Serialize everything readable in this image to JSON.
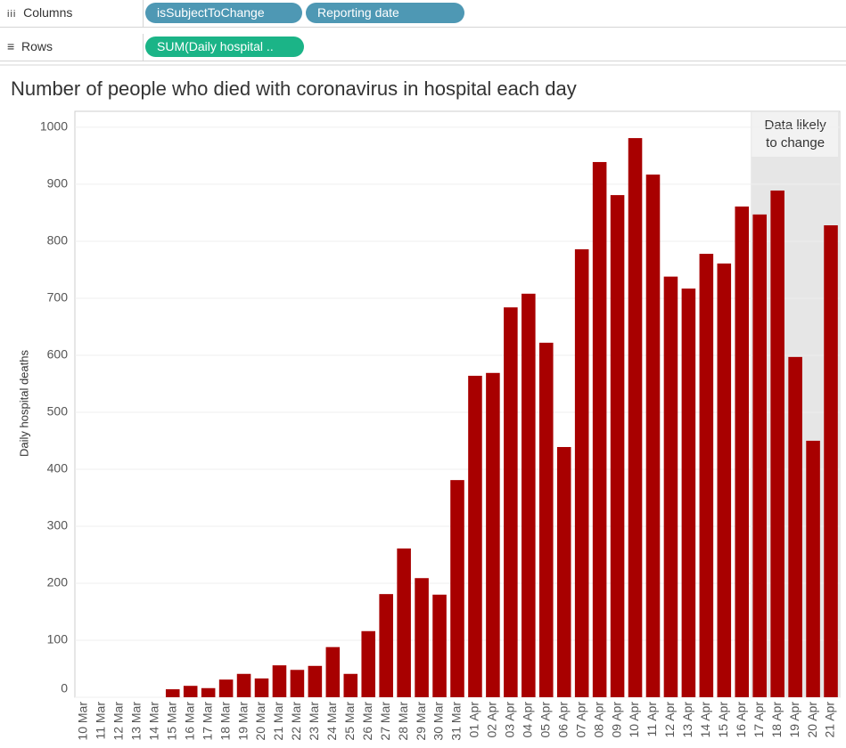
{
  "shelves": {
    "columns": {
      "label": "Columns",
      "pills": [
        "isSubjectToChange",
        "Reporting date"
      ]
    },
    "rows": {
      "label": "Rows",
      "pills": [
        "SUM(Daily hospital .."
      ]
    }
  },
  "chart_data": {
    "type": "bar",
    "title": "Number of people who died with coronavirus in hospital each day",
    "y_label": "Daily hospital deaths",
    "categories": [
      "10 Mar",
      "11 Mar",
      "12 Mar",
      "13 Mar",
      "14 Mar",
      "15 Mar",
      "16 Mar",
      "17 Mar",
      "18 Mar",
      "19 Mar",
      "20 Mar",
      "21 Mar",
      "22 Mar",
      "23 Mar",
      "24 Mar",
      "25 Mar",
      "26 Mar",
      "27 Mar",
      "28 Mar",
      "29 Mar",
      "30 Mar",
      "31 Mar",
      "01 Apr",
      "02 Apr",
      "03 Apr",
      "04 Apr",
      "05 Apr",
      "06 Apr",
      "07 Apr",
      "08 Apr",
      "09 Apr",
      "10 Apr",
      "11 Apr",
      "12 Apr",
      "13 Apr",
      "14 Apr",
      "15 Apr",
      "16 Apr",
      "17 Apr",
      "18 Apr",
      "19 Apr",
      "20 Apr",
      "21 Apr"
    ],
    "values": [
      0,
      0,
      0,
      0,
      0,
      14,
      20,
      16,
      31,
      41,
      33,
      56,
      48,
      55,
      88,
      41,
      116,
      181,
      261,
      209,
      180,
      381,
      564,
      569,
      684,
      708,
      622,
      439,
      786,
      939,
      881,
      981,
      917,
      738,
      717,
      778,
      761,
      861,
      847,
      889,
      597,
      450,
      828
    ],
    "color": "#a80000",
    "ylim": [
      0,
      1028
    ],
    "yticks": [
      0,
      100,
      200,
      300,
      400,
      500,
      600,
      700,
      800,
      900,
      1000
    ],
    "grid": true,
    "annotation": {
      "text": "Data likely to change",
      "from_category": "17 Apr"
    }
  }
}
